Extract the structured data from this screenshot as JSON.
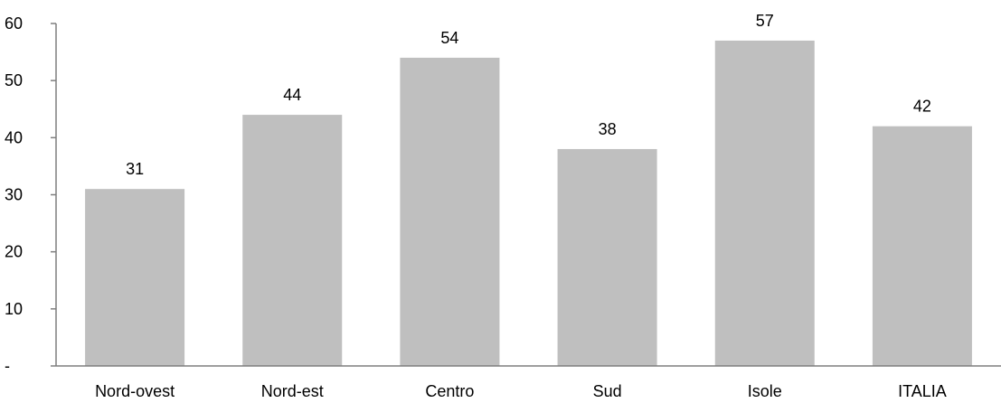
{
  "chart_data": {
    "type": "bar",
    "categories": [
      "Nord-ovest",
      "Nord-est",
      "Centro",
      "Sud",
      "Isole",
      "ITALIA"
    ],
    "values": [
      31,
      44,
      54,
      38,
      57,
      42
    ],
    "data_labels": [
      "31",
      "44",
      "54",
      "38",
      "57",
      "42"
    ],
    "ylim": [
      0,
      60
    ],
    "y_ticks": [
      0,
      10,
      20,
      30,
      40,
      50,
      60
    ],
    "y_tick_labels": [
      "-",
      "10",
      "20",
      "30",
      "40",
      "50",
      "60"
    ],
    "title": "",
    "xlabel": "",
    "ylabel": "",
    "grid": false,
    "legend": "none",
    "colors": {
      "bar": "#bfbfbf",
      "axis": "#7f7f7f",
      "text": "#000000"
    }
  }
}
